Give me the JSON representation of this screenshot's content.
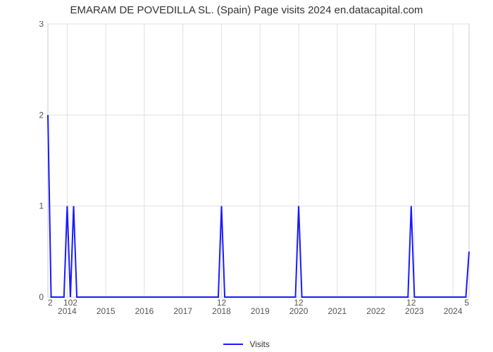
{
  "chart": {
    "type": "line",
    "title": "EMARAM DE POVEDILLA SL. (Spain) Page visits 2024 en.datacapital.com",
    "title_fontsize": 15,
    "title_color": "#333333",
    "background_color": "#ffffff",
    "plot_border_color": "#cccccc",
    "grid_color": "#e0e0e0",
    "grid_dashed_y0": true,
    "line_color": "#1a1aff",
    "line_width": 2,
    "y": {
      "min": 0,
      "max": 3,
      "ticks": [
        0,
        1,
        2,
        3
      ],
      "tick_fontsize": 12,
      "tick_color": "#555555"
    },
    "x": {
      "major_labels": [
        "2014",
        "2015",
        "2016",
        "2017",
        "2018",
        "2019",
        "2020",
        "2021",
        "2022",
        "2023",
        "2024"
      ],
      "major_positions_months": [
        6,
        18,
        30,
        42,
        54,
        66,
        78,
        90,
        102,
        114,
        126
      ],
      "total_months": 132,
      "point_labels": [
        {
          "text": "2",
          "x_month": 0,
          "align": "start"
        },
        {
          "text": "102",
          "x_month": 7,
          "align": "middle"
        },
        {
          "text": "12",
          "x_month": 54,
          "align": "middle"
        },
        {
          "text": "12",
          "x_month": 78,
          "align": "middle"
        },
        {
          "text": "12",
          "x_month": 113,
          "align": "middle"
        },
        {
          "text": "5",
          "x_month": 131,
          "align": "end"
        }
      ],
      "tick_fontsize": 12,
      "tick_color": "#555555"
    },
    "series": {
      "name": "Visits",
      "y_values": [
        2,
        0,
        0,
        0,
        0,
        0,
        1,
        0,
        1,
        0,
        0,
        0,
        0,
        0,
        0,
        0,
        0,
        0,
        0,
        0,
        0,
        0,
        0,
        0,
        0,
        0,
        0,
        0,
        0,
        0,
        0,
        0,
        0,
        0,
        0,
        0,
        0,
        0,
        0,
        0,
        0,
        0,
        0,
        0,
        0,
        0,
        0,
        0,
        0,
        0,
        0,
        0,
        0,
        0,
        1,
        0,
        0,
        0,
        0,
        0,
        0,
        0,
        0,
        0,
        0,
        0,
        0,
        0,
        0,
        0,
        0,
        0,
        0,
        0,
        0,
        0,
        0,
        0,
        1,
        0,
        0,
        0,
        0,
        0,
        0,
        0,
        0,
        0,
        0,
        0,
        0,
        0,
        0,
        0,
        0,
        0,
        0,
        0,
        0,
        0,
        0,
        0,
        0,
        0,
        0,
        0,
        0,
        0,
        0,
        0,
        0,
        0,
        0,
        1,
        0,
        0,
        0,
        0,
        0,
        0,
        0,
        0,
        0,
        0,
        0,
        0,
        0,
        0,
        0,
        0,
        0,
        0.5
      ]
    },
    "legend": {
      "label": "Visits",
      "color": "#1a1aff",
      "fontsize": 12
    }
  }
}
